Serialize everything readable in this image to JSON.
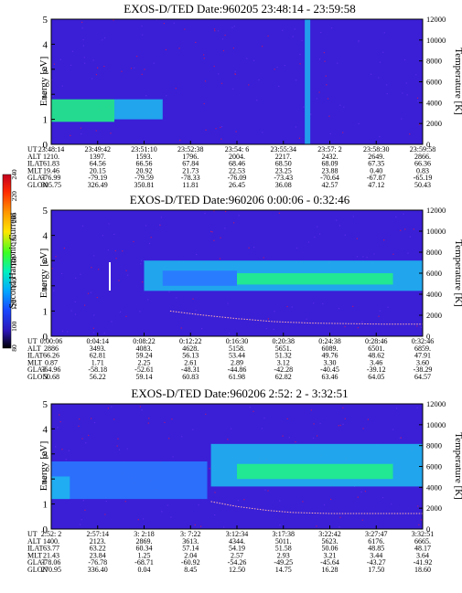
{
  "chart_data": [
    {
      "type": "heatmap",
      "title": "EXOS-D/TED   Date:960205  23:48:14 - 23:59:58",
      "ylabel": "Energy [eV]",
      "y2label": "Temperature [K]",
      "ylim": [
        0,
        5
      ],
      "y2lim": [
        0,
        12000
      ],
      "yticks": [
        "0",
        "1",
        "2",
        "3",
        "4",
        "5"
      ],
      "y2ticks": [
        "0",
        "2000",
        "4000",
        "6000",
        "8000",
        "10000",
        "12000"
      ],
      "row_labels": [
        "UT",
        "ALT",
        "ILAT",
        "MLT",
        "GLAT",
        "GLON"
      ],
      "columns": [
        [
          "23:48:14",
          "1210.",
          "61.83",
          "19.46",
          "-76.99",
          "305.75"
        ],
        [
          "23:49:42",
          "1397.",
          "64.56",
          "20.15",
          "-79.19",
          "326.49"
        ],
        [
          "23:51:10",
          "1593.",
          "66.56",
          "20.92",
          "-79.59",
          "350.81"
        ],
        [
          "23:52:38",
          "1796.",
          "67.84",
          "21.73",
          "-78.33",
          "11.81"
        ],
        [
          "23:54: 6",
          "2004.",
          "68.46",
          "22.53",
          "-76.09",
          "26.45"
        ],
        [
          "23:55:34",
          "2217.",
          "68.50",
          "23.25",
          "-73.43",
          "36.08"
        ],
        [
          "23:57: 2",
          "2432.",
          "68.09",
          "23.88",
          "-70.64",
          "42.57"
        ],
        [
          "23:58:30",
          "2649.",
          "67.35",
          "0.40",
          "-67.87",
          "47.12"
        ],
        [
          "23:59:58",
          "2866.",
          "66.36",
          "0.83",
          "-65.19",
          "50.43"
        ]
      ],
      "features": [
        {
          "kind": "band",
          "t0": 0.0,
          "t1": 0.17,
          "e0": 0.9,
          "e1": 1.8,
          "level": "high"
        },
        {
          "kind": "band",
          "t0": 0.17,
          "t1": 0.3,
          "e0": 1.0,
          "e1": 1.8,
          "level": "mid"
        },
        {
          "kind": "spike",
          "t": 0.69,
          "level": "mid"
        }
      ],
      "temperature_points": []
    },
    {
      "type": "heatmap",
      "title": "EXOS-D/TED   Date:960206  0:00:06 - 0:32:46",
      "ylabel": "Energy [eV]",
      "y2label": "Temperature [K]",
      "ylim": [
        0,
        5
      ],
      "y2lim": [
        0,
        12000
      ],
      "yticks": [
        "0",
        "1",
        "2",
        "3",
        "4",
        "5"
      ],
      "y2ticks": [
        "0",
        "2000",
        "4000",
        "6000",
        "8000",
        "10000",
        "12000"
      ],
      "row_labels": [
        "UT",
        "ALT",
        "ILAT",
        "MLT",
        "GLAT",
        "GLON"
      ],
      "columns": [
        [
          "0:00:06",
          "2886",
          "66.26",
          "0.87",
          "-64.96",
          "50.68"
        ],
        [
          "0:04:14",
          "3493.",
          "62.81",
          "1.71",
          "-58.18",
          "56.22"
        ],
        [
          "0:08:22",
          "4083.",
          "59.24",
          "2.25",
          "-52.61",
          "59.14"
        ],
        [
          "0:12:22",
          "4628.",
          "56.13",
          "2.61",
          "-48.31",
          "60.83"
        ],
        [
          "0:16:30",
          "5158.",
          "53.44",
          "2.89",
          "-44.86",
          "61.98"
        ],
        [
          "0:20:38",
          "5651.",
          "51.32",
          "3.12",
          "-42.28",
          "62.82"
        ],
        [
          "0:24:38",
          "6089.",
          "49.76",
          "3.30",
          "-40.45",
          "63.46"
        ],
        [
          "0:28:46",
          "6501.",
          "48.62",
          "3.46",
          "-39.12",
          "64.05"
        ],
        [
          "0:32:46",
          "6859.",
          "47.91",
          "3.60",
          "-38.29",
          "64.57"
        ]
      ],
      "features": [
        {
          "kind": "band",
          "t0": 0.25,
          "t1": 1.0,
          "e0": 1.8,
          "e1": 3.0,
          "level": "mid"
        },
        {
          "kind": "band",
          "t0": 0.5,
          "t1": 0.92,
          "e0": 2.05,
          "e1": 2.5,
          "level": "high"
        },
        {
          "kind": "band",
          "t0": 0.3,
          "t1": 0.5,
          "e0": 2.0,
          "e1": 2.6,
          "level": "low"
        }
      ],
      "temperature_points": [
        [
          0.32,
          1.0
        ],
        [
          0.4,
          0.85
        ],
        [
          0.5,
          0.7
        ],
        [
          0.6,
          0.58
        ],
        [
          0.7,
          0.52
        ],
        [
          0.8,
          0.5
        ],
        [
          0.9,
          0.48
        ],
        [
          1.0,
          0.48
        ]
      ]
    },
    {
      "type": "heatmap",
      "title": "EXOS-D/TED   Date:960206  2:52: 2 - 3:32:51",
      "ylabel": "Energy [eV]",
      "y2label": "Temperature [K]",
      "ylim": [
        0,
        5
      ],
      "y2lim": [
        0,
        12000
      ],
      "yticks": [
        "0",
        "1",
        "2",
        "3",
        "4",
        "5"
      ],
      "y2ticks": [
        "0",
        "2000",
        "4000",
        "6000",
        "8000",
        "10000",
        "12000"
      ],
      "row_labels": [
        "UT",
        "ALT",
        "ILAT",
        "MLT",
        "GLAT",
        "GLON"
      ],
      "columns": [
        [
          "2:52: 2",
          "1400.",
          "63.77",
          "21.43",
          "-78.06",
          "270.95"
        ],
        [
          "2:57:14",
          "2123.",
          "63.22",
          "23.84",
          "-76.78",
          "336.40"
        ],
        [
          "3: 2:18",
          "2869.",
          "60.34",
          "1.25",
          "-68.71",
          "0.04"
        ],
        [
          "3: 7:22",
          "3613.",
          "57.14",
          "2.04",
          "-60.92",
          "8.45"
        ],
        [
          "3:12:34",
          "4344.",
          "54.19",
          "2.57",
          "-54.26",
          "12.50"
        ],
        [
          "3:17:38",
          "5011.",
          "51.58",
          "2.93",
          "-49.25",
          "14.75"
        ],
        [
          "3:22:42",
          "5623.",
          "50.06",
          "3.21",
          "-45.64",
          "16.28"
        ],
        [
          "3:27:47",
          "6176.",
          "48.85",
          "3.44",
          "-43.27",
          "17.50"
        ],
        [
          "3:32:51",
          "6665.",
          "48.17",
          "3.64",
          "-41.92",
          "18.60"
        ]
      ],
      "features": [
        {
          "kind": "band",
          "t0": 0.0,
          "t1": 0.42,
          "e0": 1.2,
          "e1": 2.7,
          "level": "low"
        },
        {
          "kind": "band",
          "t0": 0.0,
          "t1": 0.05,
          "e0": 1.2,
          "e1": 2.1,
          "level": "mid"
        },
        {
          "kind": "band",
          "t0": 0.43,
          "t1": 1.0,
          "e0": 1.7,
          "e1": 3.4,
          "level": "mid"
        },
        {
          "kind": "band",
          "t0": 0.5,
          "t1": 0.92,
          "e0": 2.0,
          "e1": 2.6,
          "level": "high"
        }
      ],
      "temperature_points": [
        [
          0.43,
          1.1
        ],
        [
          0.5,
          0.9
        ],
        [
          0.58,
          0.75
        ],
        [
          0.65,
          0.66
        ],
        [
          0.75,
          0.62
        ],
        [
          0.85,
          0.62
        ],
        [
          1.0,
          0.62
        ]
      ]
    }
  ],
  "colorbar": {
    "label": "Second Harmonic Current",
    "ticks": [
      "240",
      "220",
      "200",
      "180",
      "160",
      "140",
      "120",
      "100",
      "80"
    ],
    "colors": [
      "#c2001f",
      "#ff2a00",
      "#ff9900",
      "#ffe600",
      "#3cff22",
      "#00f0c0",
      "#00a8ff",
      "#1848ff",
      "#2b16b8",
      "#000000"
    ]
  }
}
